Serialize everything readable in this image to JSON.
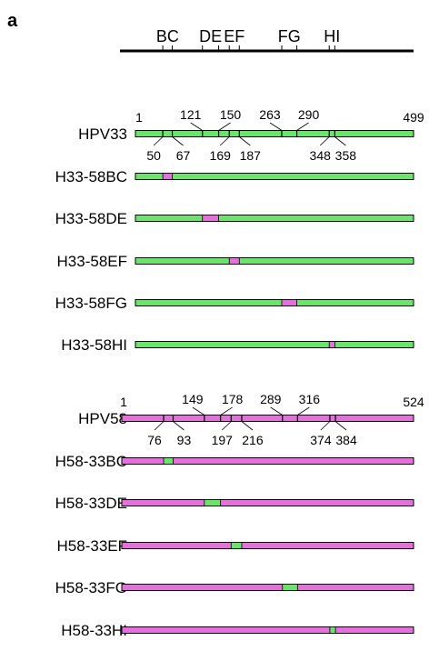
{
  "panel_label": "a",
  "colors": {
    "hpv33": "#66e866",
    "hpv58": "#e86ee0",
    "outline": "#000000"
  },
  "loop_axis": [
    "BC",
    "DE",
    "EF",
    "FG",
    "HI"
  ],
  "groups": [
    {
      "reference": {
        "name": "HPV33",
        "start_label": "1",
        "end_label": "499",
        "length": 499,
        "top_labels": [
          "121",
          "150",
          "263",
          "290"
        ],
        "bottom_labels": [
          "50",
          "67",
          "169",
          "187",
          "348",
          "358"
        ],
        "boundaries": [
          50,
          67,
          121,
          150,
          169,
          187,
          263,
          290,
          348,
          358
        ],
        "color": "#66e866"
      },
      "chimeras": [
        {
          "name": "H33-58BC",
          "loop": "BC",
          "backbone_color": "#66e866",
          "insert_color": "#e86ee0"
        },
        {
          "name": "H33-58DE",
          "loop": "DE",
          "backbone_color": "#66e866",
          "insert_color": "#e86ee0"
        },
        {
          "name": "H33-58EF",
          "loop": "EF",
          "backbone_color": "#66e866",
          "insert_color": "#e86ee0"
        },
        {
          "name": "H33-58FG",
          "loop": "FG",
          "backbone_color": "#66e866",
          "insert_color": "#e86ee0"
        },
        {
          "name": "H33-58HI",
          "loop": "HI",
          "backbone_color": "#66e866",
          "insert_color": "#e86ee0"
        }
      ]
    },
    {
      "reference": {
        "name": "HPV58",
        "start_label": "1",
        "end_label": "524",
        "length": 524,
        "top_labels": [
          "149",
          "178",
          "289",
          "316"
        ],
        "bottom_labels": [
          "76",
          "93",
          "197",
          "216",
          "374",
          "384"
        ],
        "boundaries": [
          76,
          93,
          149,
          178,
          197,
          216,
          289,
          316,
          374,
          384
        ],
        "color": "#e86ee0"
      },
      "chimeras": [
        {
          "name": "H58-33BC",
          "loop": "BC",
          "backbone_color": "#e86ee0",
          "insert_color": "#66e866"
        },
        {
          "name": "H58-33DE",
          "loop": "DE",
          "backbone_color": "#e86ee0",
          "insert_color": "#66e866"
        },
        {
          "name": "H58-33EF",
          "loop": "EF",
          "backbone_color": "#e86ee0",
          "insert_color": "#66e866"
        },
        {
          "name": "H58-33FG",
          "loop": "FG",
          "backbone_color": "#e86ee0",
          "insert_color": "#66e866"
        },
        {
          "name": "H58-33HI",
          "loop": "HI",
          "backbone_color": "#e86ee0",
          "insert_color": "#66e866"
        }
      ]
    }
  ]
}
